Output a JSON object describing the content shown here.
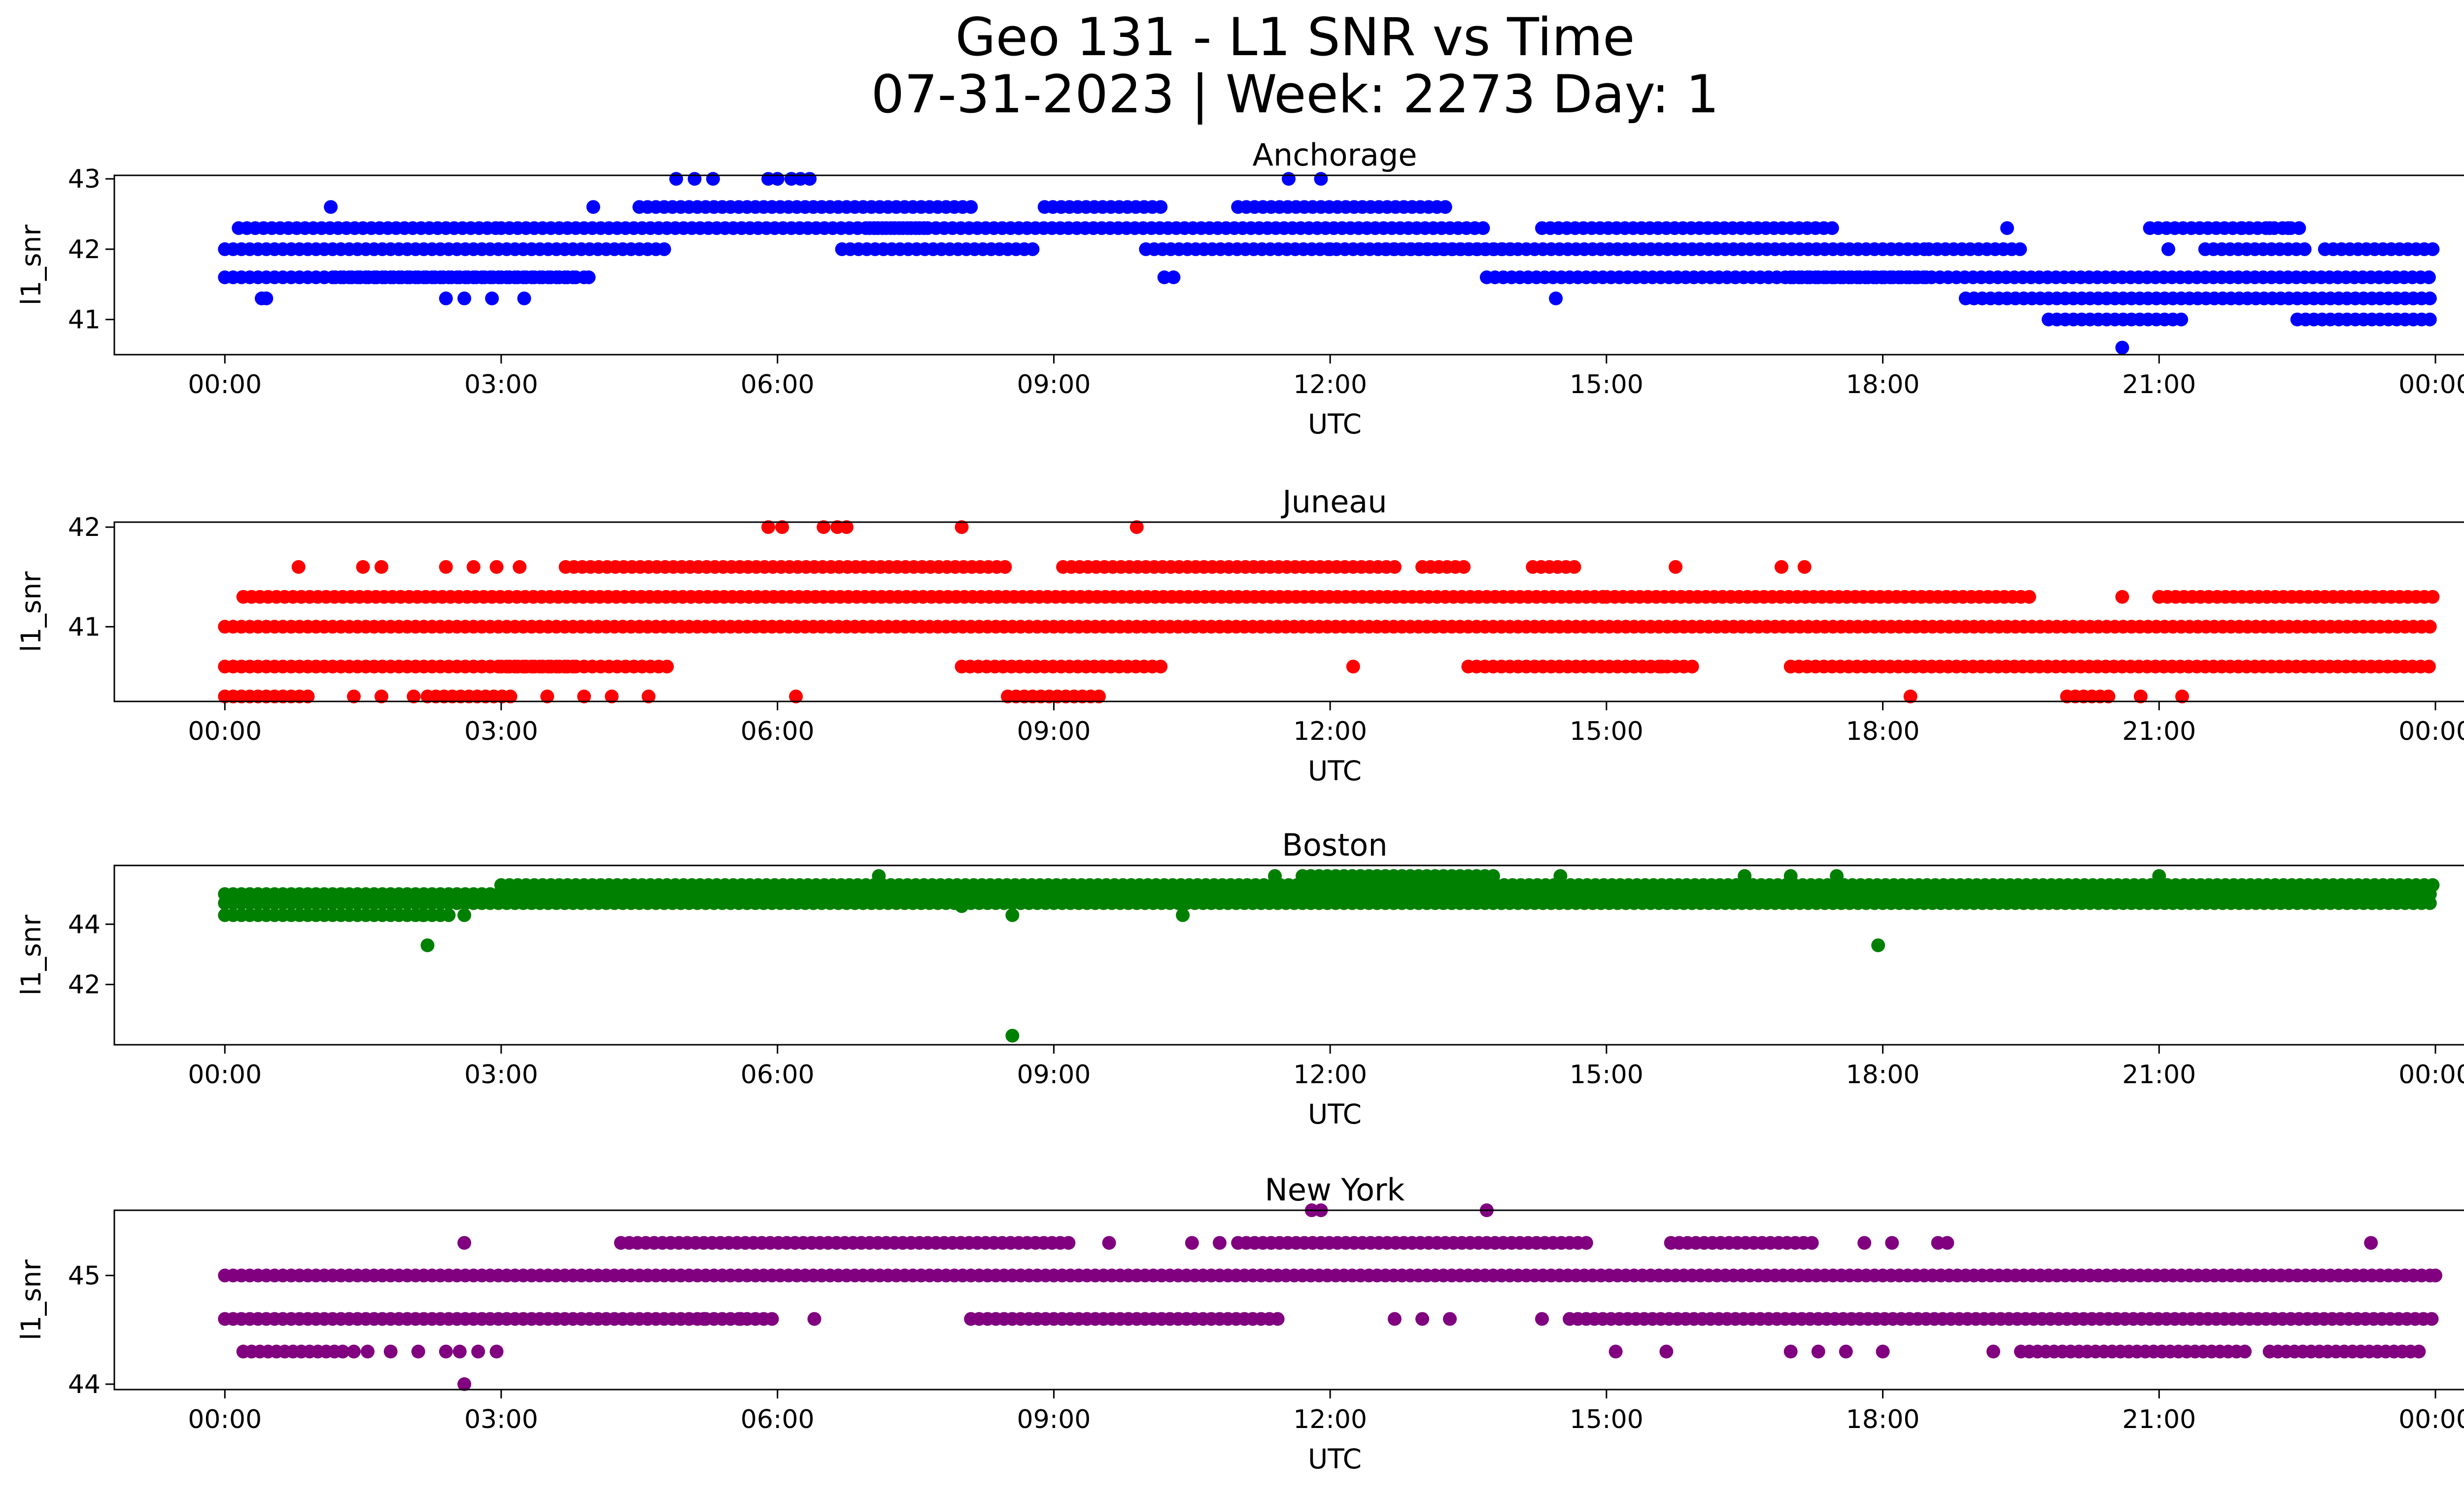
{
  "figure": {
    "title_line1": "Geo 131 - L1 SNR vs Time",
    "title_line2": "07-31-2023 | Week: 2273 Day: 1"
  },
  "chart_data": [
    {
      "type": "scatter",
      "title": "Anchorage",
      "xlabel": "UTC",
      "ylabel": "l1_snr",
      "color": "#0000ff",
      "xlim": [
        "23:00",
        "24:00+02:22"
      ],
      "x_range_hours": [
        -1.2,
        25.3
      ],
      "ylim": [
        40.5,
        43.05
      ],
      "xticks": [
        "00:00",
        "03:00",
        "06:00",
        "09:00",
        "12:00",
        "15:00",
        "18:00",
        "21:00",
        "00:00"
      ],
      "yticks": [
        41,
        42,
        43
      ],
      "grid": false,
      "levels": [
        {
          "y": 42.0,
          "segments": [
            [
              0,
              4.8
            ],
            [
              6.7,
              8.8
            ],
            [
              10.0,
              14.0
            ],
            [
              12.6,
              18.5
            ],
            [
              18.5,
              19.5
            ]
          ]
        },
        {
          "y": 41.6,
          "segments": [
            [
              0,
              3.8
            ],
            [
              1.2,
              3.9
            ],
            [
              13.7,
              18.5
            ],
            [
              17.0,
              24.0
            ]
          ]
        },
        {
          "y": 42.3,
          "segments": [
            [
              0.15,
              3.0
            ],
            [
              3.0,
              7.6
            ],
            [
              7.0,
              13.7
            ],
            [
              14.3,
              17.5
            ],
            [
              20.9,
              22.6
            ]
          ]
        },
        {
          "y": 42.6,
          "segments": [
            [
              4.5,
              8.1
            ],
            [
              8.9,
              10.2
            ],
            [
              11.0,
              13.3
            ]
          ]
        },
        {
          "y": 41.3,
          "segments": [
            [
              18.9,
              24.0
            ]
          ]
        },
        {
          "y": 41.0,
          "segments": [
            [
              19.8,
              21.3
            ],
            [
              22.5,
              24.0
            ]
          ]
        },
        {
          "y": 42.0,
          "segments": [
            [
              21.5,
              22.6
            ],
            [
              22.8,
              24.0
            ]
          ]
        }
      ],
      "points": [
        [
          0.4,
          41.3
        ],
        [
          0.45,
          41.3
        ],
        [
          1.15,
          42.6
        ],
        [
          2.4,
          41.3
        ],
        [
          2.6,
          41.3
        ],
        [
          2.9,
          41.3
        ],
        [
          3.25,
          41.3
        ],
        [
          3.95,
          41.6
        ],
        [
          4.0,
          42.6
        ],
        [
          4.9,
          43.0
        ],
        [
          5.1,
          43.0
        ],
        [
          5.3,
          43.0
        ],
        [
          5.9,
          43.0
        ],
        [
          6.0,
          43.0
        ],
        [
          6.15,
          43.0
        ],
        [
          6.25,
          43.0
        ],
        [
          6.35,
          43.0
        ],
        [
          10.2,
          41.6
        ],
        [
          10.3,
          41.6
        ],
        [
          11.55,
          43.0
        ],
        [
          11.9,
          43.0
        ],
        [
          12.0,
          42.0
        ],
        [
          14.45,
          41.3
        ],
        [
          16.4,
          41.6
        ],
        [
          19.35,
          42.3
        ],
        [
          20.6,
          40.6
        ],
        [
          21.1,
          42.0
        ],
        [
          21.9,
          42.3
        ],
        [
          22.2,
          42.3
        ],
        [
          22.4,
          42.3
        ]
      ]
    },
    {
      "type": "scatter",
      "title": "Juneau",
      "xlabel": "UTC",
      "ylabel": "l1_snr",
      "color": "#ff0000",
      "x_range_hours": [
        -1.2,
        25.3
      ],
      "ylim": [
        40.25,
        42.05
      ],
      "xticks": [
        "00:00",
        "03:00",
        "06:00",
        "09:00",
        "12:00",
        "15:00",
        "18:00",
        "21:00",
        "00:00"
      ],
      "yticks": [
        41,
        42
      ],
      "grid": false,
      "levels": [
        {
          "y": 41.0,
          "segments": [
            [
              0,
              24.0
            ]
          ]
        },
        {
          "y": 41.3,
          "segments": [
            [
              0.2,
              15.0
            ],
            [
              15.0,
              19.6
            ],
            [
              21.0,
              24.0
            ]
          ]
        },
        {
          "y": 40.6,
          "segments": [
            [
              0,
              3.8
            ],
            [
              3.0,
              4.8
            ],
            [
              8.0,
              10.2
            ],
            [
              13.5,
              16.0
            ],
            [
              17.0,
              24.0
            ]
          ]
        },
        {
          "y": 41.6,
          "segments": [
            [
              3.7,
              8.5
            ],
            [
              9.1,
              12.7
            ],
            [
              13.0,
              13.5
            ],
            [
              14.2,
              14.7
            ]
          ]
        },
        {
          "y": 40.3,
          "segments": [
            [
              0,
              0.9
            ],
            [
              2.2,
              3.1
            ],
            [
              8.5,
              9.5
            ],
            [
              20.0,
              20.5
            ]
          ]
        }
      ],
      "points": [
        [
          0.8,
          41.6
        ],
        [
          1.5,
          41.6
        ],
        [
          1.7,
          41.6
        ],
        [
          2.4,
          41.6
        ],
        [
          2.7,
          41.6
        ],
        [
          2.95,
          41.6
        ],
        [
          3.2,
          41.6
        ],
        [
          1.4,
          40.3
        ],
        [
          1.7,
          40.3
        ],
        [
          2.05,
          40.3
        ],
        [
          3.5,
          40.3
        ],
        [
          3.9,
          40.3
        ],
        [
          4.2,
          40.3
        ],
        [
          4.6,
          40.3
        ],
        [
          5.9,
          42.0
        ],
        [
          6.05,
          42.0
        ],
        [
          6.5,
          42.0
        ],
        [
          6.65,
          42.0
        ],
        [
          6.75,
          42.0
        ],
        [
          8.0,
          42.0
        ],
        [
          9.9,
          42.0
        ],
        [
          6.2,
          40.3
        ],
        [
          12.25,
          40.6
        ],
        [
          15.3,
          40.6
        ],
        [
          15.6,
          40.6
        ],
        [
          15.75,
          41.6
        ],
        [
          16.9,
          41.6
        ],
        [
          17.15,
          41.6
        ],
        [
          18.3,
          40.3
        ],
        [
          20.6,
          41.3
        ],
        [
          20.8,
          40.3
        ],
        [
          21.25,
          40.3
        ]
      ]
    },
    {
      "type": "scatter",
      "title": "Boston",
      "xlabel": "UTC",
      "ylabel": "l1_snr",
      "color": "#008000",
      "x_range_hours": [
        -1.2,
        25.3
      ],
      "ylim": [
        40.0,
        45.95
      ],
      "xticks": [
        "00:00",
        "03:00",
        "06:00",
        "09:00",
        "12:00",
        "15:00",
        "18:00",
        "21:00",
        "00:00"
      ],
      "yticks": [
        42,
        44
      ],
      "grid": false,
      "levels": [
        {
          "y": 45.0,
          "segments": [
            [
              0,
              24.0
            ]
          ]
        },
        {
          "y": 44.7,
          "segments": [
            [
              0,
              24.0
            ]
          ]
        },
        {
          "y": 44.3,
          "segments": [
            [
              0.0,
              2.5
            ]
          ]
        },
        {
          "y": 45.3,
          "segments": [
            [
              3.0,
              24.0
            ]
          ]
        },
        {
          "y": 45.6,
          "segments": [
            [
              11.7,
              13.8
            ]
          ]
        }
      ],
      "points": [
        [
          2.2,
          43.3
        ],
        [
          2.15,
          44.3
        ],
        [
          2.6,
          44.3
        ],
        [
          7.1,
          45.6
        ],
        [
          8.0,
          44.6
        ],
        [
          8.55,
          44.3
        ],
        [
          8.55,
          40.3
        ],
        [
          10.4,
          44.3
        ],
        [
          11.4,
          45.6
        ],
        [
          14.5,
          45.6
        ],
        [
          16.5,
          45.6
        ],
        [
          17.0,
          45.6
        ],
        [
          17.5,
          45.6
        ],
        [
          17.95,
          43.3
        ],
        [
          21.0,
          45.6
        ]
      ]
    },
    {
      "type": "scatter",
      "title": "New York",
      "xlabel": "UTC",
      "ylabel": "l1_snr",
      "color": "#800080",
      "x_range_hours": [
        -1.2,
        25.3
      ],
      "ylim": [
        43.95,
        45.6
      ],
      "xticks": [
        "00:00",
        "03:00",
        "06:00",
        "09:00",
        "12:00",
        "15:00",
        "18:00",
        "21:00",
        "00:00"
      ],
      "yticks": [
        44,
        45
      ],
      "grid": false,
      "levels": [
        {
          "y": 45.0,
          "segments": [
            [
              0,
              24.0
            ]
          ]
        },
        {
          "y": 44.6,
          "segments": [
            [
              0,
              6.0
            ],
            [
              8.1,
              11.5
            ],
            [
              14.6,
              24.0
            ]
          ]
        },
        {
          "y": 45.3,
          "segments": [
            [
              4.3,
              9.2
            ],
            [
              11.0,
              14.8
            ],
            [
              15.7,
              17.3
            ]
          ]
        },
        {
          "y": 44.3,
          "segments": [
            [
              0.2,
              1.3
            ],
            [
              19.5,
              22.0
            ],
            [
              22.2,
              23.9
            ]
          ]
        }
      ],
      "points": [
        [
          1.4,
          44.3
        ],
        [
          1.55,
          44.3
        ],
        [
          1.8,
          44.3
        ],
        [
          2.1,
          44.3
        ],
        [
          2.4,
          44.3
        ],
        [
          2.55,
          44.3
        ],
        [
          2.75,
          44.3
        ],
        [
          2.95,
          44.3
        ],
        [
          2.6,
          45.3
        ],
        [
          2.6,
          44.0
        ],
        [
          5.2,
          44.6
        ],
        [
          5.6,
          44.6
        ],
        [
          6.4,
          44.6
        ],
        [
          9.6,
          45.3
        ],
        [
          10.5,
          45.3
        ],
        [
          10.8,
          45.3
        ],
        [
          11.8,
          45.6
        ],
        [
          11.9,
          45.6
        ],
        [
          13.7,
          45.6
        ],
        [
          12.7,
          44.6
        ],
        [
          13.0,
          44.6
        ],
        [
          13.3,
          44.6
        ],
        [
          14.3,
          44.6
        ],
        [
          15.1,
          44.3
        ],
        [
          15.65,
          44.3
        ],
        [
          17.0,
          44.3
        ],
        [
          17.3,
          44.3
        ],
        [
          17.6,
          44.3
        ],
        [
          18.0,
          44.3
        ],
        [
          17.8,
          45.3
        ],
        [
          18.1,
          45.3
        ],
        [
          18.6,
          45.3
        ],
        [
          18.7,
          45.3
        ],
        [
          19.2,
          44.3
        ],
        [
          23.3,
          45.3
        ],
        [
          24.0,
          45.0
        ]
      ]
    }
  ]
}
